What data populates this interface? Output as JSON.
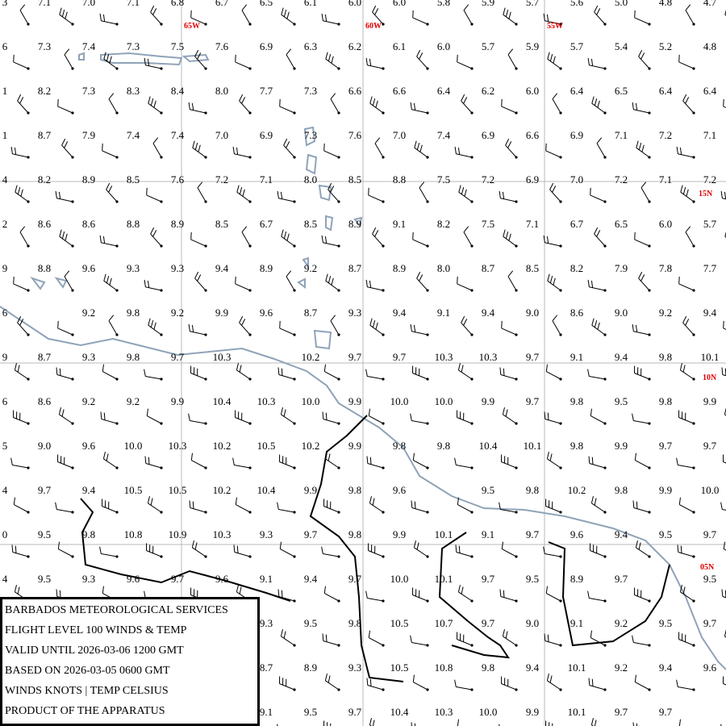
{
  "map": {
    "meridian_labels": [
      "65W",
      "60W",
      "55W"
    ],
    "parallel_labels": [
      "15N",
      "10N",
      "05N"
    ],
    "temperature_rows": [
      {
        "edge": "3",
        "values": [
          "7.1",
          "7.0",
          "7.1",
          "6.8",
          "6.7",
          "6.5",
          "6.1",
          "6.0",
          "6.0",
          "5.8",
          "5.9",
          "5.7",
          "5.6",
          "5.0",
          "4.8",
          "4.7"
        ]
      },
      {
        "edge": "6",
        "values": [
          "7.3",
          "7.4",
          "7.3",
          "7.5",
          "7.6",
          "6.9",
          "6.3",
          "6.2",
          "6.1",
          "6.0",
          "5.7",
          "5.9",
          "5.7",
          "5.4",
          "5.2",
          "4.8"
        ]
      },
      {
        "edge": "1",
        "values": [
          "8.2",
          "7.3",
          "8.3",
          "8.4",
          "8.0",
          "7.7",
          "7.3",
          "6.6",
          "6.6",
          "6.4",
          "6.2",
          "6.0",
          "6.4",
          "6.5",
          "6.4",
          "6.4"
        ]
      },
      {
        "edge": "1",
        "values": [
          "8.7",
          "7.9",
          "7.4",
          "7.4",
          "7.0",
          "6.9",
          "7.3",
          "7.6",
          "7.0",
          "7.4",
          "6.9",
          "6.6",
          "6.9",
          "7.1",
          "7.2",
          "7.1"
        ]
      },
      {
        "edge": "4",
        "values": [
          "8.2",
          "8.9",
          "8.5",
          "7.6",
          "7.2",
          "7.1",
          "8.0",
          "8.5",
          "8.8",
          "7.5",
          "7.2",
          "6.9",
          "7.0",
          "7.2",
          "7.1",
          "7.2"
        ]
      },
      {
        "edge": "2",
        "values": [
          "8.6",
          "8.6",
          "8.8",
          "8.9",
          "8.5",
          "6.7",
          "8.5",
          "8.9",
          "9.1",
          "8.2",
          "7.5",
          "7.1",
          "6.7",
          "6.5",
          "6.0",
          "5.7"
        ]
      },
      {
        "edge": "9",
        "values": [
          "8.8",
          "9.6",
          "9.3",
          "9.3",
          "9.4",
          "8.9",
          "9.2",
          "8.7",
          "8.9",
          "8.0",
          "8.7",
          "8.5",
          "8.2",
          "7.9",
          "7.8",
          "7.7"
        ]
      },
      {
        "edge": "6",
        "values": [
          null,
          "9.2",
          "9.8",
          "9.2",
          "9.9",
          "9.6",
          "8.7",
          "9.3",
          "9.4",
          "9.1",
          "9.4",
          "9.0",
          "8.6",
          "9.0",
          "9.2",
          "9.4"
        ]
      },
      {
        "edge": "9",
        "values": [
          "8.7",
          "9.3",
          "9.8",
          "9.7",
          "10.3",
          null,
          "10.2",
          "9.7",
          "9.7",
          "10.3",
          "10.3",
          "9.7",
          "9.1",
          "9.4",
          "9.8",
          "10.1"
        ]
      },
      {
        "edge": "6",
        "values": [
          "8.6",
          "9.2",
          "9.2",
          "9.9",
          "10.4",
          "10.3",
          "10.0",
          "9.9",
          "10.0",
          "10.0",
          "9.9",
          "9.7",
          "9.8",
          "9.5",
          "9.8",
          "9.9"
        ]
      },
      {
        "edge": "5",
        "values": [
          "9.0",
          "9.6",
          "10.0",
          "10.3",
          "10.2",
          "10.5",
          "10.2",
          "9.9",
          "9.8",
          "9.8",
          "10.4",
          "10.1",
          "9.8",
          "9.9",
          "9.7",
          "9.7"
        ]
      },
      {
        "edge": "4",
        "values": [
          "9.7",
          "9.4",
          "10.5",
          "10.5",
          "10.2",
          "10.4",
          "9.9",
          "9.8",
          "9.6",
          null,
          "9.5",
          "9.8",
          "10.2",
          "9.8",
          "9.9",
          "10.0"
        ]
      },
      {
        "edge": "0",
        "values": [
          "9.5",
          "9.8",
          "10.8",
          "10.9",
          "10.3",
          "9.3",
          "9.7",
          "9.8",
          "9.9",
          "10.1",
          "9.1",
          "9.7",
          "9.6",
          "9.4",
          "9.5",
          "9.7"
        ]
      },
      {
        "edge": "4",
        "values": [
          "9.5",
          "9.3",
          "9.6",
          "9.7",
          "9.6",
          "9.1",
          "9.4",
          "9.7",
          "10.0",
          "10.1",
          "9.7",
          "9.5",
          "8.9",
          "9.7",
          null,
          "9.5"
        ]
      },
      {
        "edge": null,
        "values": [
          null,
          null,
          null,
          null,
          null,
          "9.3",
          "9.5",
          "9.8",
          "10.5",
          "10.7",
          "9.7",
          "9.0",
          "9.1",
          "9.2",
          "9.5",
          "9.7"
        ]
      },
      {
        "edge": null,
        "values": [
          null,
          null,
          null,
          null,
          null,
          "8.7",
          "8.9",
          "9.3",
          "10.5",
          "10.8",
          "9.8",
          "9.4",
          "10.1",
          "9.2",
          "9.4",
          "9.6"
        ]
      },
      {
        "edge": null,
        "values": [
          null,
          null,
          null,
          null,
          null,
          "9.1",
          "9.5",
          "9.7",
          "10.4",
          "10.3",
          "10.0",
          "9.9",
          "10.1",
          "9.7",
          "9.7",
          null
        ]
      }
    ]
  },
  "info_box": {
    "lines": [
      "BARBADOS METEOROLOGICAL SERVICES",
      "FLIGHT LEVEL 100 WINDS & TEMP",
      "VALID UNTIL 2026-03-06 1200 GMT",
      "BASED ON 2026-03-05 0600 GMT",
      "WINDS KNOTS | TEMP CELSIUS",
      "PRODUCT OF THE APPARATUS"
    ]
  }
}
